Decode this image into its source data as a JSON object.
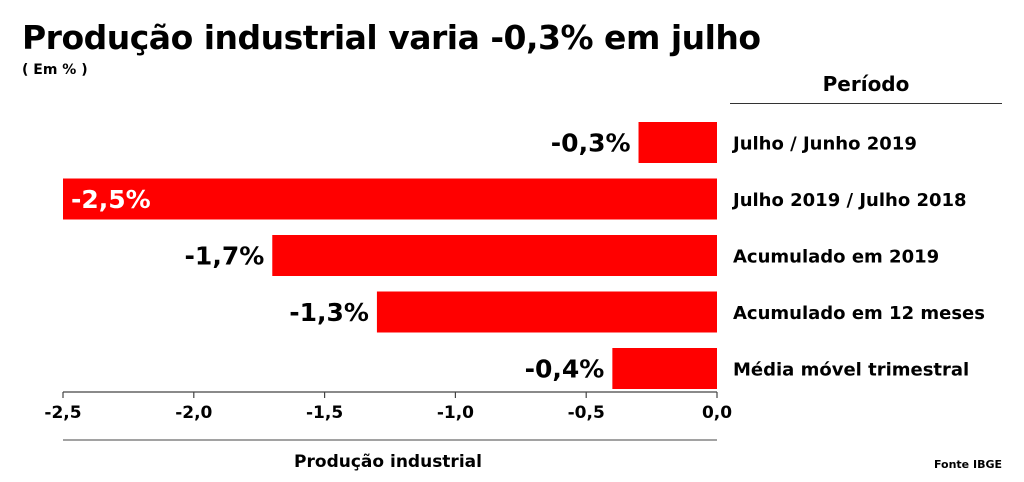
{
  "header": {
    "title": "Produção industrial varia -0,3% em julho",
    "subtitle": "( Em % )",
    "period_heading": "Período",
    "source": "Fonte IBGE"
  },
  "chart_data": {
    "type": "bar",
    "orientation": "horizontal",
    "title": "Produção industrial varia -0,3% em julho",
    "subtitle": "( Em % )",
    "xlabel": "Produção industrial",
    "ylabel": "Período",
    "xlim": [
      -2.5,
      0.0
    ],
    "xticks": [
      -2.5,
      -2.0,
      -1.5,
      -1.0,
      -0.5,
      0.0
    ],
    "xtick_labels": [
      "-2,5",
      "-2,0",
      "-1,5",
      "-1,0",
      "-0,5",
      "0,0"
    ],
    "categories": [
      "Julho / Junho 2019",
      "Julho 2019 / Julho 2018",
      "Acumulado em 2019",
      "Acumulado em 12 meses",
      "Média móvel trimestral"
    ],
    "values": [
      -0.3,
      -2.5,
      -1.7,
      -1.3,
      -0.4
    ],
    "value_labels": [
      "-0,3%",
      "-2,5%",
      "-1,7%",
      "-1,3%",
      "-0,4%"
    ],
    "bar_color": "#ff0000",
    "grid": false,
    "legend": "none"
  }
}
